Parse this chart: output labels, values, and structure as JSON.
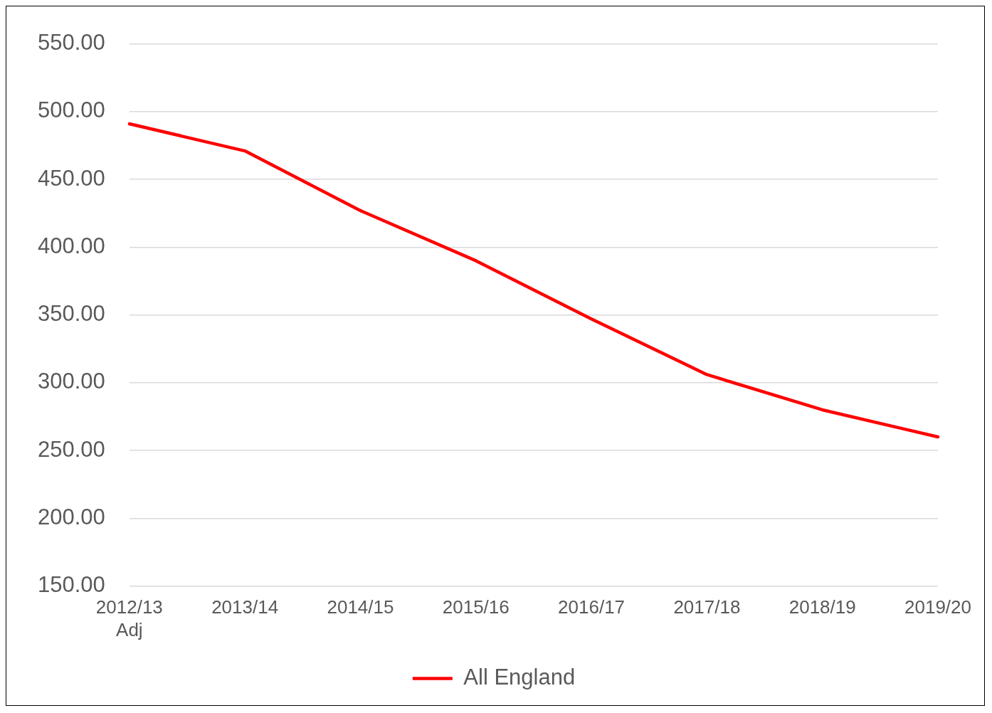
{
  "chart_data": {
    "type": "line",
    "categories": [
      "2012/13 Adj",
      "2013/14",
      "2014/15",
      "2015/16",
      "2016/17",
      "2017/18",
      "2018/19",
      "2019/20"
    ],
    "series": [
      {
        "name": "All England",
        "color": "#ff0000",
        "values": [
          491,
          471,
          427,
          390,
          347,
          306,
          280,
          260
        ]
      }
    ],
    "ylim": [
      150,
      550
    ],
    "yticks": [
      {
        "value": 150,
        "label": "150.00"
      },
      {
        "value": 200,
        "label": "200.00"
      },
      {
        "value": 250,
        "label": "250.00"
      },
      {
        "value": 300,
        "label": "300.00"
      },
      {
        "value": 350,
        "label": "350.00"
      },
      {
        "value": 400,
        "label": "400.00"
      },
      {
        "value": 450,
        "label": "450.00"
      },
      {
        "value": 500,
        "label": "500.00"
      },
      {
        "value": 550,
        "label": "550.00"
      }
    ],
    "grid": "y",
    "legend": "bottom",
    "marker": "none",
    "line_style": "solid"
  }
}
